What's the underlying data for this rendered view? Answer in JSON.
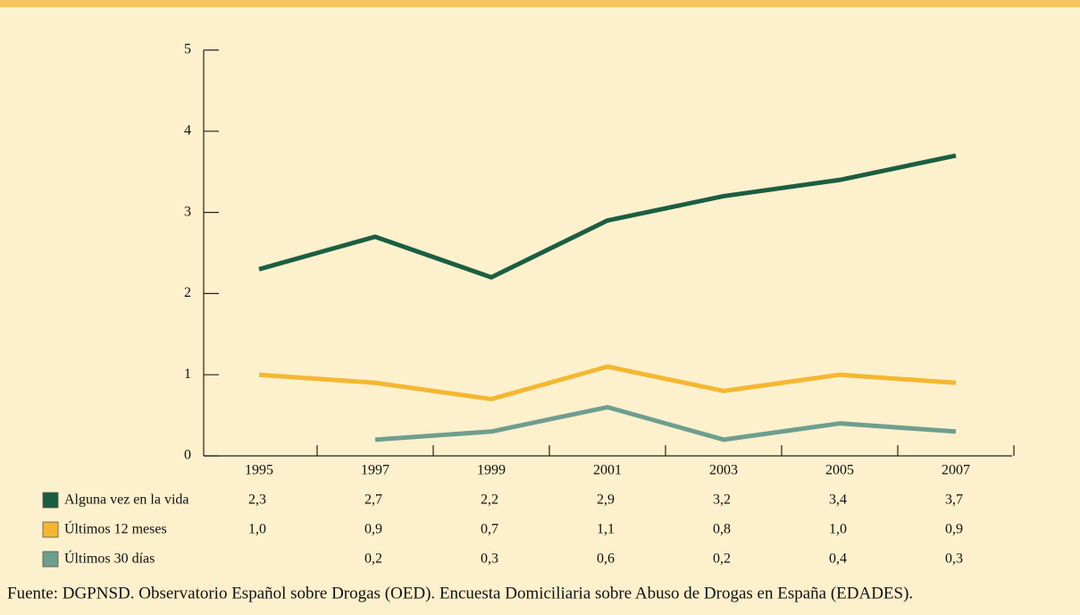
{
  "chart_data": {
    "type": "line",
    "categories": [
      "1995",
      "1997",
      "1999",
      "2001",
      "2003",
      "2005",
      "2007"
    ],
    "series": [
      {
        "name": "Alguna vez en la vida",
        "color": "#1b5e41",
        "values": [
          2.3,
          2.7,
          2.2,
          2.9,
          3.2,
          3.4,
          3.7
        ],
        "value_labels": [
          "2,3",
          "2,7",
          "2,2",
          "2,9",
          "3,2",
          "3,4",
          "3,7"
        ]
      },
      {
        "name": "Últimos 12 meses",
        "color": "#f5b731",
        "values": [
          1.0,
          0.9,
          0.7,
          1.1,
          0.8,
          1.0,
          0.9
        ],
        "value_labels": [
          "1,0",
          "0,9",
          "0,7",
          "1,1",
          "0,8",
          "1,0",
          "0,9"
        ]
      },
      {
        "name": "Últimos 30 días",
        "color": "#6e9e8e",
        "values": [
          null,
          0.2,
          0.3,
          0.6,
          0.2,
          0.4,
          0.3
        ],
        "value_labels": [
          null,
          "0,2",
          "0,3",
          "0,6",
          "0,2",
          "0,4",
          "0,3"
        ]
      }
    ],
    "ylim": [
      0,
      5
    ],
    "yticks": [
      0,
      1,
      2,
      3,
      4,
      5
    ],
    "source": "Fuente: DGPNSD. Observatorio Español sobre Drogas (OED). Encuesta Domiciliaria sobre Abuso de Drogas en España (EDADES)."
  }
}
